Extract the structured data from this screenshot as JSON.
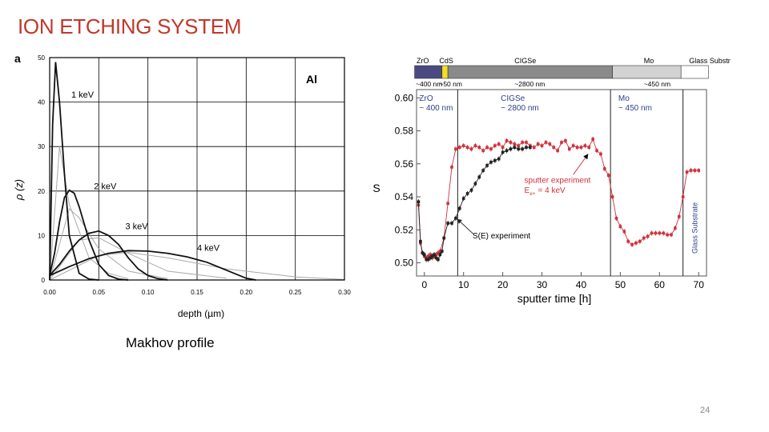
{
  "slide": {
    "title": "ION ETCHING SYSTEM",
    "caption": "Makhov profile",
    "page_number": "24"
  },
  "colors": {
    "title": "#c0392b",
    "sputter_series": "#d0313a",
    "see_series": "#222222",
    "substrate_label": "#2d3f8a"
  },
  "chart_data": [
    {
      "type": "line",
      "panel_label": "a",
      "legend_label": "Al",
      "xlabel": "depth (µm)",
      "ylabel": "ρ (z)",
      "xlim": [
        0.0,
        0.3
      ],
      "ylim": [
        0,
        50
      ],
      "x_ticks": [
        "0.00",
        "0.05",
        "0.10",
        "0.15",
        "0.20",
        "0.25",
        "0.30"
      ],
      "y_ticks": [
        "0",
        "10",
        "20",
        "30",
        "40",
        "50"
      ],
      "grid": true,
      "series": [
        {
          "name": "1 keV",
          "label_at": [
            0.022,
            41
          ],
          "peak": [
            0.006,
            49
          ],
          "x": [
            0.0,
            0.003,
            0.006,
            0.01,
            0.015,
            0.02,
            0.03,
            0.04,
            0.05
          ],
          "y": [
            0.0,
            35.0,
            49.0,
            40.0,
            24.0,
            10.0,
            1.5,
            0.2,
            0.0
          ]
        },
        {
          "name": "2 keV",
          "label_at": [
            0.045,
            20.4
          ],
          "x": [
            0.0,
            0.005,
            0.01,
            0.015,
            0.02,
            0.025,
            0.03,
            0.04,
            0.05,
            0.06,
            0.07,
            0.08
          ],
          "y": [
            1.0,
            6.0,
            13.0,
            18.5,
            20.2,
            19.5,
            16.5,
            9.0,
            3.5,
            1.0,
            0.2,
            0.0
          ]
        },
        {
          "name": "3 keV",
          "label_at": [
            0.077,
            11.4
          ],
          "x": [
            0.0,
            0.01,
            0.02,
            0.03,
            0.04,
            0.05,
            0.06,
            0.07,
            0.08,
            0.09,
            0.1,
            0.11,
            0.12
          ],
          "y": [
            1.0,
            3.5,
            6.5,
            9.0,
            10.5,
            11.0,
            10.0,
            8.0,
            5.0,
            2.5,
            1.0,
            0.3,
            0.0
          ]
        },
        {
          "name": "4 keV",
          "label_at": [
            0.15,
            6.6
          ],
          "x": [
            0.0,
            0.02,
            0.04,
            0.06,
            0.08,
            0.1,
            0.12,
            0.14,
            0.16,
            0.18,
            0.2,
            0.21
          ],
          "y": [
            1.0,
            3.0,
            4.8,
            6.0,
            6.6,
            6.5,
            6.0,
            5.2,
            4.0,
            2.2,
            0.4,
            0.0
          ]
        }
      ],
      "reference_curves": [
        {
          "x": [
            0.0,
            0.01,
            0.02,
            0.04,
            0.06,
            0.08
          ],
          "y": [
            0.0,
            30.0,
            17.0,
            5.0,
            1.5,
            0.3
          ]
        },
        {
          "x": [
            0.0,
            0.02,
            0.03,
            0.05,
            0.08,
            0.12
          ],
          "y": [
            0.0,
            16.0,
            14.0,
            7.0,
            2.0,
            0.3
          ]
        },
        {
          "x": [
            0.0,
            0.03,
            0.05,
            0.08,
            0.12,
            0.18
          ],
          "y": [
            0.0,
            9.0,
            9.5,
            6.0,
            2.0,
            0.4
          ]
        },
        {
          "x": [
            0.0,
            0.05,
            0.08,
            0.12,
            0.18,
            0.25,
            0.3
          ],
          "y": [
            0.0,
            5.5,
            6.2,
            5.0,
            2.5,
            0.7,
            0.1
          ]
        }
      ]
    },
    {
      "type": "scatter",
      "xlabel": "sputter time [h]",
      "ylabel": "S",
      "xlim": [
        -2,
        72
      ],
      "ylim": [
        0.492,
        0.605
      ],
      "x_ticks": [
        "0",
        "10",
        "20",
        "30",
        "40",
        "50",
        "60",
        "70"
      ],
      "y_ticks": [
        "0.50",
        "0.52",
        "0.54",
        "0.56",
        "0.58",
        "0.60"
      ],
      "grid": false,
      "layer_bar": {
        "names": [
          "ZrO",
          "CdS",
          "CIGSe",
          "Mo",
          "Glass Substrate"
        ],
        "thicknesses": [
          "~400 nm",
          "~50 nm",
          "~2800 nm",
          "~450 nm"
        ],
        "bounds": [
          -2.5,
          4.5,
          6.0,
          48.0,
          65.5,
          72.5
        ],
        "colors": [
          "#4b4a80",
          "#f0e020",
          "#8a8a8a",
          "#d2d2d2",
          "#ffffff"
        ]
      },
      "region_labels": [
        {
          "name": "ZrO",
          "thickness": "~ 400 nm"
        },
        {
          "name": "CIGSe",
          "thickness": "~ 2800 nm"
        },
        {
          "name": "Mo",
          "thickness": "~ 450 nm"
        },
        {
          "name": "Glass Substrate"
        }
      ],
      "boundaries": [
        8.5,
        47.5,
        66.0
      ],
      "annotations": {
        "sputter_experiment": "sputter experiment",
        "energy_label": "E",
        "energy_subscript": "e+",
        "energy_value": "= 4 keV",
        "see_experiment": "S(E) experiment"
      },
      "series": [
        {
          "name": "sputter experiment",
          "x": [
            -1.5,
            -1,
            -0.5,
            0,
            0.5,
            1,
            1.5,
            2,
            2.5,
            3,
            3.5,
            4,
            5,
            6,
            7,
            8,
            9,
            10,
            11,
            12,
            13,
            14,
            15,
            16,
            17,
            18,
            19,
            20,
            21,
            22,
            23,
            24,
            25,
            26,
            27,
            28,
            29,
            30,
            31,
            32,
            33,
            34,
            35,
            36,
            37,
            38,
            39,
            40,
            41,
            42,
            43,
            44,
            45,
            46,
            47,
            48,
            49,
            50,
            51,
            52,
            53,
            54,
            55,
            56,
            57,
            58,
            59,
            60,
            61,
            62,
            63,
            64,
            65,
            66,
            67,
            68,
            69,
            70
          ],
          "y": [
            0.535,
            0.512,
            0.506,
            0.504,
            0.503,
            0.504,
            0.505,
            0.503,
            0.504,
            0.505,
            0.506,
            0.507,
            0.515,
            0.536,
            0.558,
            0.569,
            0.57,
            0.571,
            0.57,
            0.569,
            0.571,
            0.57,
            0.568,
            0.57,
            0.569,
            0.571,
            0.572,
            0.57,
            0.574,
            0.573,
            0.572,
            0.571,
            0.573,
            0.573,
            0.571,
            0.57,
            0.572,
            0.571,
            0.573,
            0.572,
            0.57,
            0.568,
            0.573,
            0.574,
            0.569,
            0.571,
            0.57,
            0.57,
            0.571,
            0.57,
            0.575,
            0.568,
            0.566,
            0.557,
            0.553,
            0.54,
            0.527,
            0.522,
            0.519,
            0.513,
            0.511,
            0.512,
            0.513,
            0.515,
            0.516,
            0.518,
            0.518,
            0.518,
            0.518,
            0.517,
            0.517,
            0.521,
            0.528,
            0.54,
            0.555,
            0.556,
            0.556,
            0.556
          ]
        },
        {
          "name": "S(E) experiment",
          "x": [
            -1.5,
            -1,
            -0.5,
            0,
            0.5,
            1,
            1.5,
            2,
            2.5,
            3,
            3.5,
            4,
            4.5,
            5,
            6,
            7,
            8,
            9,
            10,
            11,
            12,
            13,
            14,
            15,
            16,
            17,
            18,
            19,
            20,
            21,
            22,
            23,
            24,
            25,
            26,
            27
          ],
          "y": [
            0.537,
            0.513,
            0.506,
            0.505,
            0.502,
            0.502,
            0.503,
            0.504,
            0.505,
            0.503,
            0.502,
            0.505,
            0.507,
            0.515,
            0.524,
            0.524,
            0.527,
            0.533,
            0.539,
            0.542,
            0.544,
            0.548,
            0.552,
            0.556,
            0.559,
            0.561,
            0.562,
            0.563,
            0.567,
            0.568,
            0.569,
            0.57,
            0.569,
            0.569,
            0.57,
            0.57
          ]
        }
      ]
    }
  ]
}
